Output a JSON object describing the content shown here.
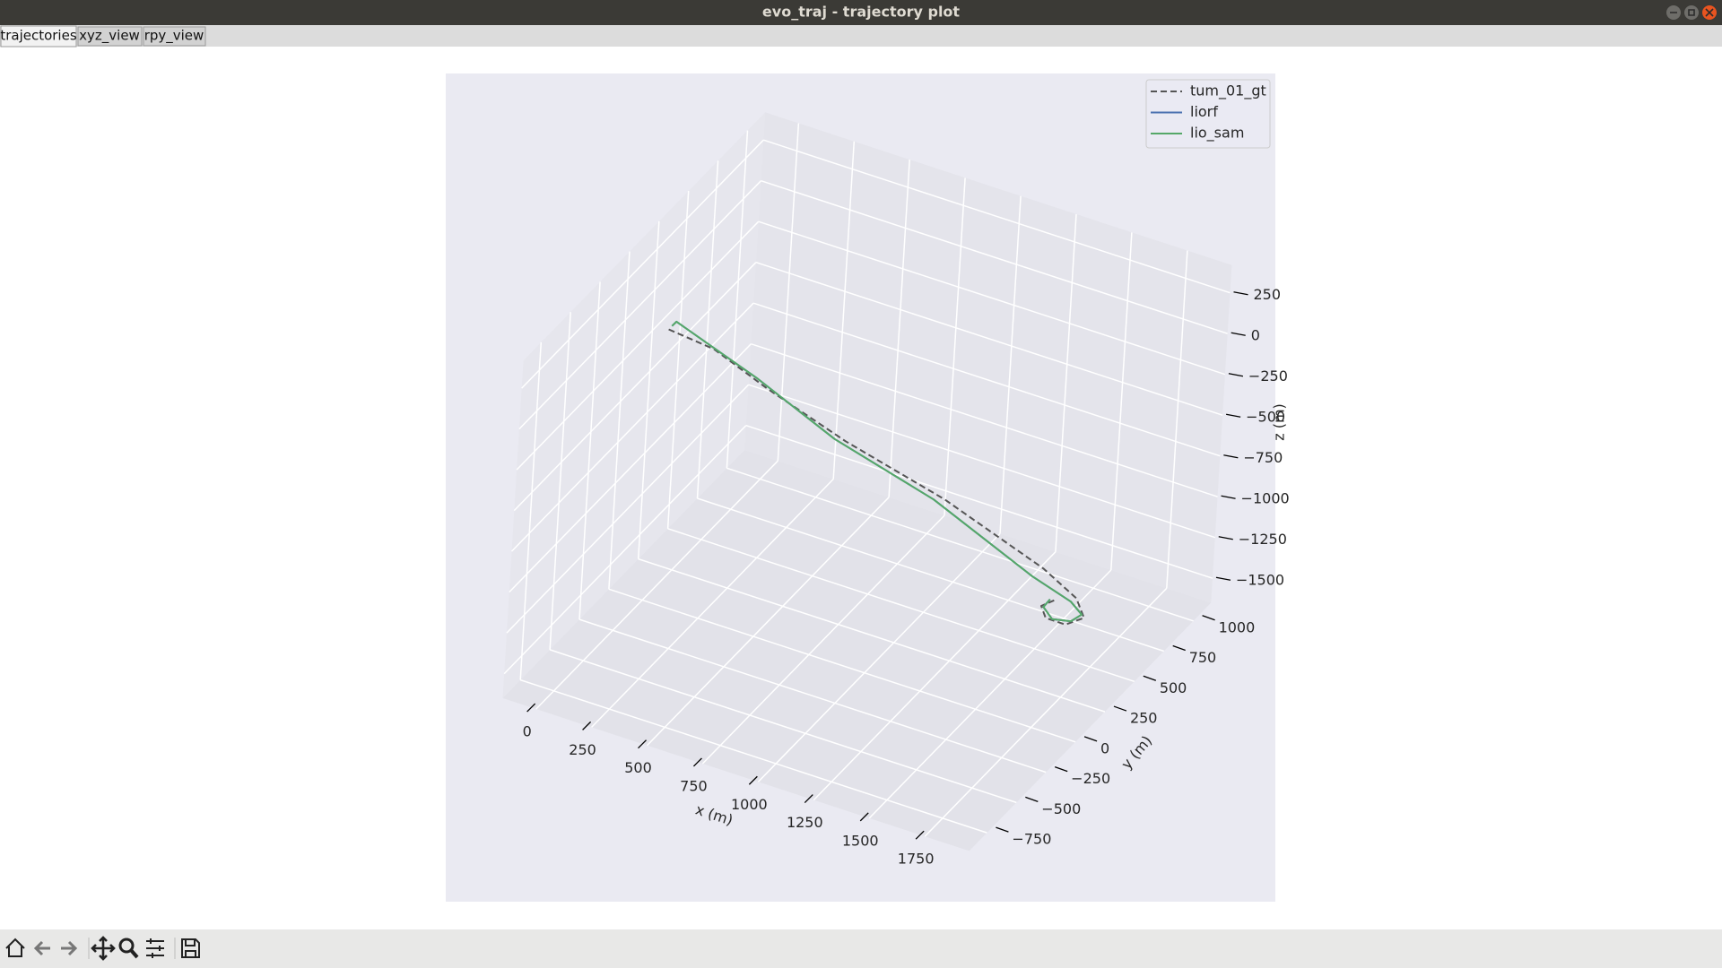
{
  "window": {
    "title": "evo_traj - trajectory plot"
  },
  "tabs": [
    "trajectories",
    "xyz_view",
    "rpy_view"
  ],
  "chart_data": {
    "type": "line3d",
    "xlabel": "x (m)",
    "ylabel": "y (m)",
    "zlabel": "z (m)",
    "xlim": [
      -150,
      1950
    ],
    "ylim": [
      -900,
      1150
    ],
    "zlim": [
      -1650,
      420
    ],
    "xticks": [
      0,
      250,
      500,
      750,
      1000,
      1250,
      1500,
      1750
    ],
    "yticks": [
      {
        "value": -750,
        "label": "−750"
      },
      {
        "value": -500,
        "label": "−500"
      },
      {
        "value": -250,
        "label": "−250"
      },
      0,
      250,
      500,
      750,
      1000
    ],
    "zticks": [
      {
        "value": -1500,
        "label": "−1500"
      },
      {
        "value": -1250,
        "label": "−1250"
      },
      {
        "value": -1000,
        "label": "−1000"
      },
      {
        "value": -750,
        "label": "−750"
      },
      {
        "value": -500,
        "label": "−500"
      },
      {
        "value": -250,
        "label": "−250"
      },
      0,
      250
    ],
    "grid": true,
    "legend": "upper right",
    "series": [
      {
        "name": "tum_01_gt",
        "color": "#555555",
        "linestyle": "dashed",
        "x": [
          156,
          325,
          571,
          852,
          1230,
          1595,
          1704,
          1745,
          1703,
          1614,
          1559,
          1589
        ],
        "y": [
          -230,
          -157,
          -142,
          5,
          157,
          343,
          433,
          430,
          350,
          351,
          417,
          490
        ],
        "z": [
          250,
          150,
          0,
          -300,
          -600,
          -1000,
          -1200,
          -1300,
          -1300,
          -1300,
          -1300,
          -1300
        ]
      },
      {
        "name": "liorf",
        "color": "#4c72b0",
        "linestyle": "solid",
        "x": [
          156,
          157,
          258,
          497,
          807,
          1193,
          1582,
          1696,
          1726,
          1711,
          1640,
          1570,
          1567
        ],
        "y": [
          -202,
          -166,
          -124,
          -96,
          -3,
          134,
          272,
          401,
          446,
          382,
          357,
          415,
          477
        ],
        "z": [
          250,
          250,
          150,
          0,
          -300,
          -600,
          -1000,
          -1200,
          -1300,
          -1300,
          -1300,
          -1300,
          -1300
        ]
      },
      {
        "name": "lio_sam",
        "color": "#55a868",
        "linestyle": "solid",
        "x": [
          156,
          157,
          258,
          497,
          807,
          1193,
          1582,
          1696,
          1726,
          1711,
          1640,
          1570,
          1567
        ],
        "y": [
          -202,
          -166,
          -124,
          -96,
          -3,
          134,
          272,
          401,
          446,
          382,
          357,
          415,
          477
        ],
        "z": [
          250,
          250,
          150,
          0,
          -300,
          -600,
          -1000,
          -1200,
          -1300,
          -1300,
          -1300,
          -1300,
          -1300
        ]
      }
    ]
  }
}
